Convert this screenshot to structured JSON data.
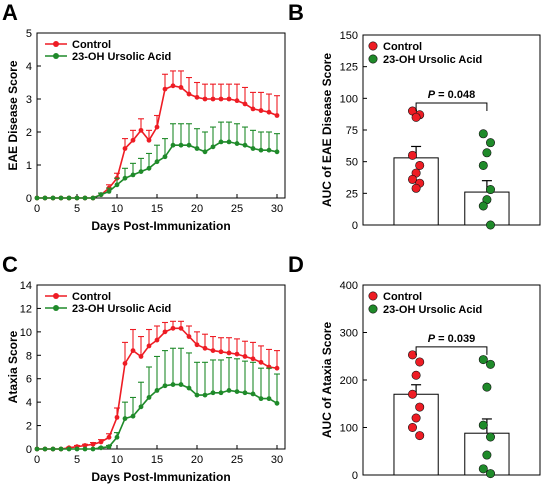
{
  "colors": {
    "control": "#ee1c24",
    "treated": "#1f8a2a",
    "axis": "#000000"
  },
  "chart_data": [
    {
      "panel": "A",
      "type": "line",
      "xlabel": "Days Post-Immunization",
      "ylabel": "EAE Disease Score",
      "xlim": [
        0,
        31
      ],
      "ylim": [
        0,
        5
      ],
      "xticks": [
        0,
        5,
        10,
        15,
        20,
        25,
        30
      ],
      "yticks": [
        0,
        1,
        2,
        3,
        4,
        5
      ],
      "legend_position": "top-left",
      "x": [
        0,
        1,
        2,
        3,
        4,
        5,
        6,
        7,
        8,
        9,
        10,
        11,
        12,
        13,
        14,
        15,
        16,
        17,
        18,
        19,
        20,
        21,
        22,
        23,
        24,
        25,
        26,
        27,
        28,
        29,
        30
      ],
      "series": [
        {
          "name": "Control",
          "color": "#ee1c24",
          "values": [
            0,
            0,
            0,
            0,
            0,
            0,
            0,
            0,
            0.1,
            0.3,
            0.6,
            1.5,
            1.75,
            2.05,
            1.75,
            2.15,
            3.3,
            3.4,
            3.35,
            3.15,
            3.05,
            3.0,
            3.0,
            3.0,
            3.0,
            2.95,
            2.85,
            2.7,
            2.65,
            2.6,
            2.5
          ],
          "error": [
            0,
            0,
            0,
            0,
            0,
            0,
            0,
            0,
            0.05,
            0.1,
            0.15,
            0.3,
            0.3,
            0.35,
            0.3,
            0.35,
            0.45,
            0.45,
            0.5,
            0.5,
            0.45,
            0.45,
            0.45,
            0.45,
            0.45,
            0.5,
            0.5,
            0.5,
            0.55,
            0.55,
            0.6
          ]
        },
        {
          "name": "23-OH Ursolic Acid",
          "color": "#1f8a2a",
          "values": [
            0,
            0,
            0,
            0,
            0,
            0,
            0,
            0,
            0.1,
            0.2,
            0.4,
            0.6,
            0.7,
            0.8,
            0.9,
            1.1,
            1.25,
            1.6,
            1.6,
            1.6,
            1.5,
            1.4,
            1.55,
            1.7,
            1.7,
            1.65,
            1.6,
            1.5,
            1.45,
            1.45,
            1.4
          ],
          "error": [
            0,
            0,
            0,
            0,
            0,
            0,
            0,
            0,
            0.05,
            0.1,
            0.2,
            0.3,
            0.35,
            0.4,
            0.45,
            0.5,
            0.55,
            0.65,
            0.65,
            0.65,
            0.6,
            0.6,
            0.6,
            0.6,
            0.6,
            0.6,
            0.55,
            0.55,
            0.55,
            0.55,
            0.55
          ]
        }
      ]
    },
    {
      "panel": "B",
      "type": "bar",
      "ylabel": "AUC of EAE Disease Score",
      "ylim": [
        0,
        150
      ],
      "yticks": [
        0,
        25,
        50,
        75,
        100,
        125,
        150
      ],
      "legend_position": "top-left",
      "p_value_label": "P",
      "p_value_text": " = 0.048",
      "series": [
        {
          "name": "Control",
          "color": "#ee1c24",
          "mean": 53,
          "error": 9,
          "points": [
            90,
            87,
            85,
            55,
            47,
            41,
            36,
            33,
            29
          ]
        },
        {
          "name": "23-OH Ursolic Acid",
          "color": "#1f8a2a",
          "mean": 26,
          "error": 9,
          "points": [
            72,
            65,
            57,
            47,
            28,
            20,
            15,
            0
          ]
        }
      ]
    },
    {
      "panel": "C",
      "type": "line",
      "xlabel": "Days Post-Immunization",
      "ylabel": "Ataxia Score",
      "xlim": [
        0,
        31
      ],
      "ylim": [
        0,
        14
      ],
      "xticks": [
        0,
        5,
        10,
        15,
        20,
        25,
        30
      ],
      "yticks": [
        0,
        2,
        4,
        6,
        8,
        10,
        12,
        14
      ],
      "legend_position": "top-left",
      "x": [
        0,
        1,
        2,
        3,
        4,
        5,
        6,
        7,
        8,
        9,
        10,
        11,
        12,
        13,
        14,
        15,
        16,
        17,
        18,
        19,
        20,
        21,
        22,
        23,
        24,
        25,
        26,
        27,
        28,
        29,
        30
      ],
      "series": [
        {
          "name": "Control",
          "color": "#ee1c24",
          "values": [
            0,
            0,
            0,
            0,
            0.1,
            0.2,
            0.3,
            0.4,
            0.6,
            1.0,
            2.7,
            7.3,
            8.4,
            7.9,
            8.8,
            9.3,
            10.0,
            10.3,
            10.3,
            9.6,
            8.9,
            8.6,
            8.4,
            8.3,
            8.2,
            8.1,
            7.9,
            7.7,
            7.4,
            7.0,
            6.9
          ],
          "error": [
            0,
            0,
            0,
            0,
            0.05,
            0.1,
            0.1,
            0.15,
            0.2,
            0.3,
            0.8,
            1.8,
            1.8,
            1.7,
            1.4,
            1.2,
            0.8,
            0.6,
            0.6,
            0.9,
            1.1,
            1.2,
            1.2,
            1.2,
            1.3,
            1.3,
            1.3,
            1.4,
            1.4,
            1.5,
            1.5
          ]
        },
        {
          "name": "23-OH Ursolic Acid",
          "color": "#1f8a2a",
          "values": [
            0,
            0,
            0,
            0,
            0,
            0,
            0,
            0,
            0.1,
            0.2,
            1.0,
            2.6,
            2.8,
            3.6,
            4.4,
            5.0,
            5.4,
            5.5,
            5.5,
            5.2,
            4.6,
            4.6,
            4.8,
            4.8,
            5.0,
            4.9,
            4.8,
            4.7,
            4.3,
            4.3,
            3.9
          ],
          "error": [
            0,
            0,
            0,
            0,
            0,
            0,
            0,
            0,
            0.05,
            0.1,
            0.4,
            1.4,
            1.6,
            2.1,
            2.6,
            2.9,
            3.0,
            3.1,
            3.1,
            3.0,
            2.8,
            2.8,
            2.8,
            2.8,
            2.8,
            2.8,
            2.7,
            2.7,
            2.6,
            2.6,
            2.5
          ]
        }
      ]
    },
    {
      "panel": "D",
      "type": "bar",
      "ylabel": "AUC of Ataxia Score",
      "ylim": [
        0,
        400
      ],
      "yticks": [
        0,
        100,
        200,
        300,
        400
      ],
      "legend_position": "top-left",
      "p_value_label": "P",
      "p_value_text": " = 0.039",
      "series": [
        {
          "name": "Control",
          "color": "#ee1c24",
          "mean": 170,
          "error": 20,
          "points": [
            253,
            238,
            210,
            170,
            143,
            120,
            100,
            83
          ]
        },
        {
          "name": "23-OH Ursolic Acid",
          "color": "#1f8a2a",
          "mean": 88,
          "error": 30,
          "points": [
            243,
            233,
            185,
            105,
            80,
            42,
            13,
            3
          ]
        }
      ]
    }
  ]
}
